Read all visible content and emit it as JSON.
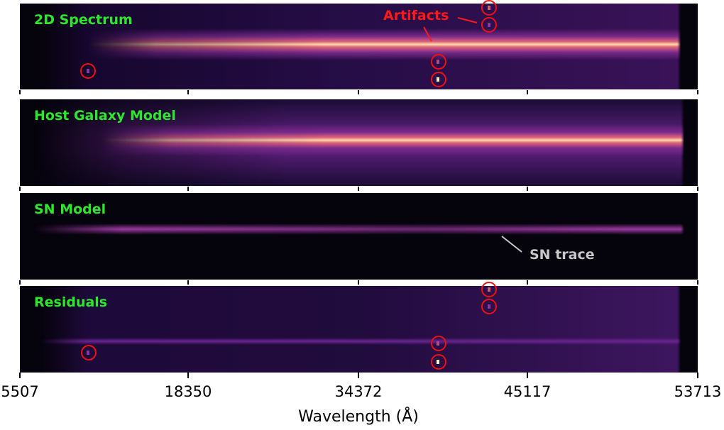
{
  "chart_data": {
    "type": "heatmap",
    "panels": [
      {
        "label": "2D Spectrum"
      },
      {
        "label": "Host Galaxy Model"
      },
      {
        "label": "SN Model"
      },
      {
        "label": "Residuals"
      }
    ],
    "xlabel": "Wavelength (Å)",
    "xticks": [
      "5507",
      "18350",
      "34372",
      "45117",
      "53713"
    ],
    "xlim": [
      5507,
      53713
    ],
    "colormap": "magma",
    "annotations": [
      {
        "text": "Artifacts",
        "color": "#ff1a1a"
      },
      {
        "text": "SN trace",
        "color": "#c8c8c8"
      }
    ],
    "label_color": "#2ee62e"
  }
}
